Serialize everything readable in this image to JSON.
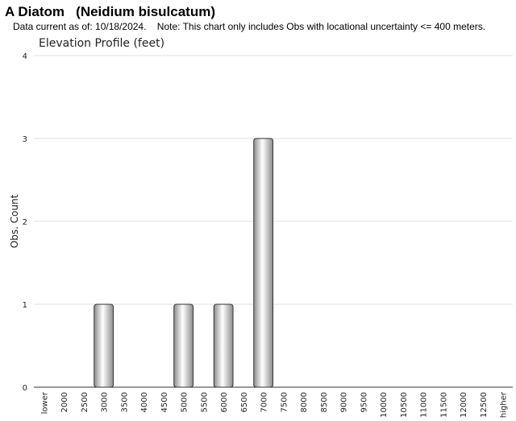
{
  "chart_data": {
    "type": "bar",
    "title": "A Diatom   (Neidium bisulcatum)",
    "subtitle": "Data current as of: 10/18/2024.    Note: This chart only includes Obs with locational uncertainty <= 400 meters.",
    "chart_title": "Elevation Profile (feet)",
    "y_label": "Obs. Count",
    "categories": [
      "lower",
      "2000",
      "2500",
      "3000",
      "3500",
      "4000",
      "4500",
      "5000",
      "5500",
      "6000",
      "6500",
      "7000",
      "7500",
      "8000",
      "8500",
      "9000",
      "9500",
      "10000",
      "10500",
      "11000",
      "11500",
      "12000",
      "12500",
      "higher"
    ],
    "values": [
      0,
      0,
      0,
      1,
      0,
      0,
      0,
      1,
      0,
      1,
      0,
      3,
      0,
      0,
      0,
      0,
      0,
      0,
      0,
      0,
      0,
      0,
      0,
      0
    ],
    "color": "#8c8c8c",
    "ylim": [
      0,
      4
    ],
    "yticks": [
      0,
      1,
      2,
      3,
      4
    ],
    "grid": true
  }
}
